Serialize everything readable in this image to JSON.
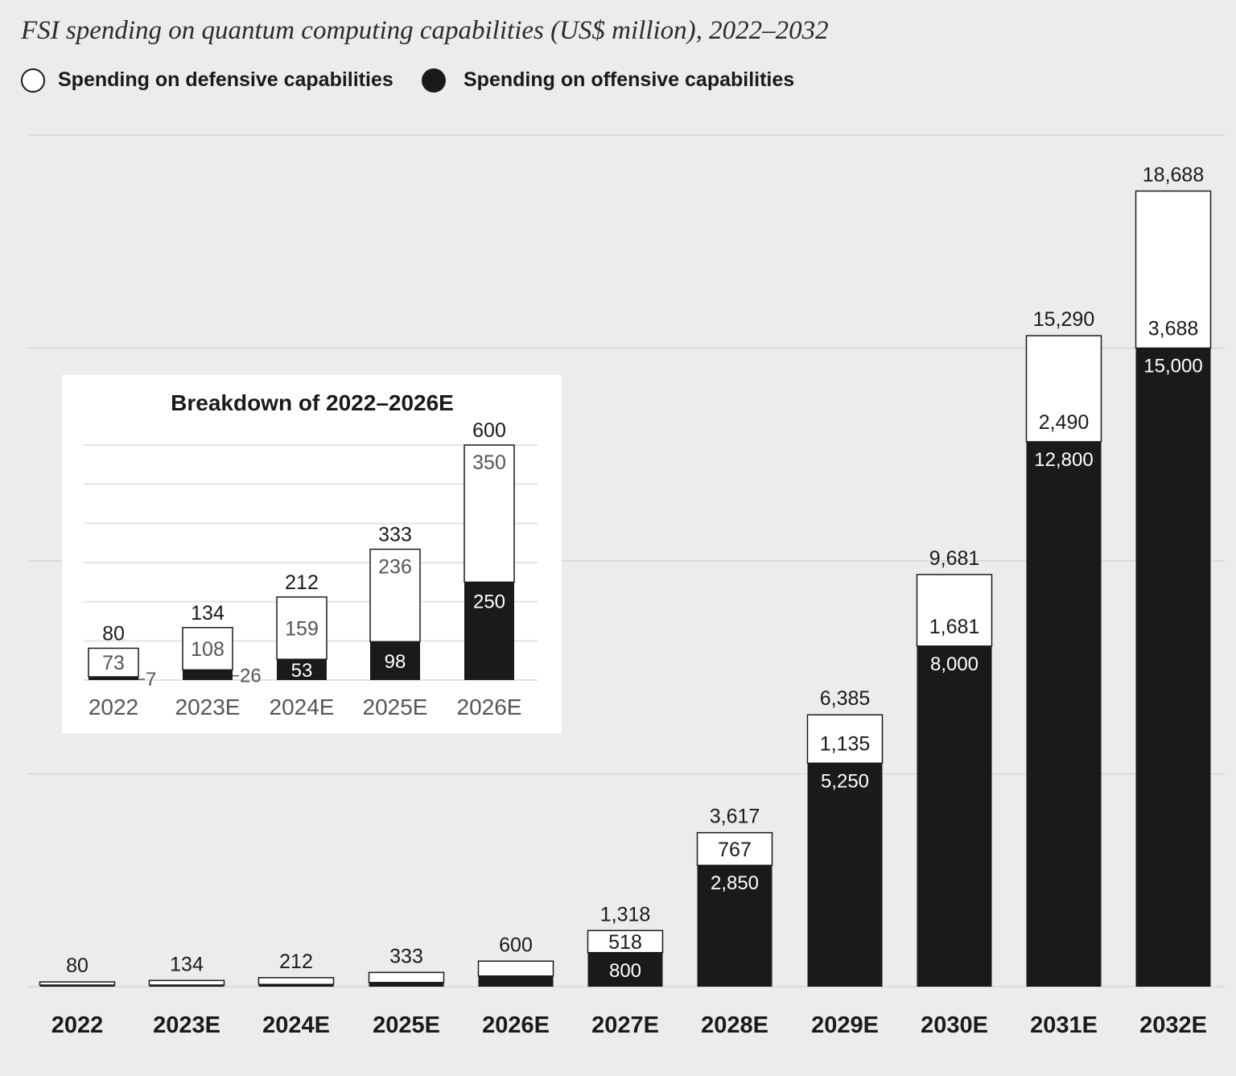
{
  "chart_data": [
    {
      "type": "bar",
      "stacked": true,
      "title": "FSI spending on quantum computing capabilities (US$ million), 2022–2032",
      "categories": [
        "2022",
        "2023E",
        "2024E",
        "2025E",
        "2026E",
        "2027E",
        "2028E",
        "2029E",
        "2030E",
        "2031E",
        "2032E"
      ],
      "series": [
        {
          "name": "Spending on offensive capabilities",
          "color": "#1a1a1a",
          "values": [
            7,
            26,
            53,
            98,
            250,
            800,
            2850,
            5250,
            8000,
            12800,
            15000
          ]
        },
        {
          "name": "Spending on defensive capabilities",
          "color": "#ffffff",
          "values": [
            73,
            108,
            159,
            236,
            350,
            518,
            767,
            1135,
            1681,
            2490,
            3688
          ]
        }
      ],
      "totals": [
        80,
        134,
        212,
        333,
        600,
        1318,
        3617,
        6385,
        9681,
        15290,
        18688
      ],
      "total_labels": [
        "80",
        "134",
        "212",
        "333",
        "600",
        "1,318",
        "3,617",
        "6,385",
        "9,681",
        "15,290",
        "18,688"
      ],
      "offensive_labels": [
        "",
        "",
        "",
        "",
        "",
        "800",
        "2,850",
        "5,250",
        "8,000",
        "12,800",
        "15,000"
      ],
      "defensive_labels": [
        "",
        "",
        "",
        "",
        "",
        "518",
        "767",
        "1,135",
        "1,681",
        "2,490",
        "3,688"
      ],
      "ylim": [
        0,
        20000
      ],
      "grid": true,
      "legend": "top-left"
    },
    {
      "type": "bar",
      "stacked": true,
      "title": "Breakdown of 2022–2026E",
      "categories": [
        "2022",
        "2023E",
        "2024E",
        "2025E",
        "2026E"
      ],
      "series": [
        {
          "name": "Spending on offensive capabilities",
          "color": "#1a1a1a",
          "values": [
            7,
            26,
            53,
            98,
            250
          ]
        },
        {
          "name": "Spending on defensive capabilities",
          "color": "#ffffff",
          "values": [
            73,
            108,
            159,
            236,
            350
          ]
        }
      ],
      "totals": [
        80,
        134,
        212,
        333,
        600
      ],
      "total_labels": [
        "80",
        "134",
        "212",
        "333",
        "600"
      ],
      "offensive_labels": [
        "7",
        "26",
        "53",
        "98",
        "250"
      ],
      "defensive_labels": [
        "73",
        "108",
        "159",
        "236",
        "350"
      ],
      "ylim": [
        0,
        600
      ],
      "grid": true
    }
  ],
  "legend": {
    "defensive_label": "Spending on defensive capabilities",
    "offensive_label": "Spending on offensive capabilities"
  }
}
